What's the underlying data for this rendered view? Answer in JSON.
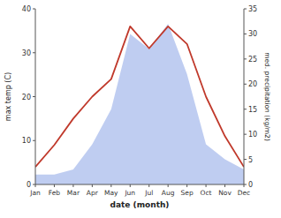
{
  "chart_data": {
    "type": "line",
    "xlabel": "date (month)",
    "ylabel": "max temp (C)",
    "y2label": "med. precipitation (kg/m2)",
    "categories": [
      "Jan",
      "Feb",
      "Mar",
      "Apr",
      "May",
      "Jun",
      "Jul",
      "Aug",
      "Sep",
      "Oct",
      "Nov",
      "Dec"
    ],
    "series": [
      {
        "type": "line",
        "color": "#c0392b",
        "values": [
          4,
          9,
          15,
          20,
          24,
          36,
          31,
          36,
          32,
          20,
          11,
          4
        ]
      },
      {
        "type": "area",
        "axis": "y2",
        "color": "#b8c8f0",
        "values": [
          2,
          2,
          3,
          8,
          15,
          30,
          27,
          32,
          22,
          8,
          5,
          3
        ]
      }
    ],
    "ylim": [
      0,
      40
    ],
    "yticks": [
      0,
      10,
      20,
      30,
      40
    ],
    "y2lim": [
      0,
      35
    ],
    "y2ticks": [
      0,
      5,
      10,
      15,
      20,
      25,
      30,
      35
    ],
    "grid": false
  }
}
